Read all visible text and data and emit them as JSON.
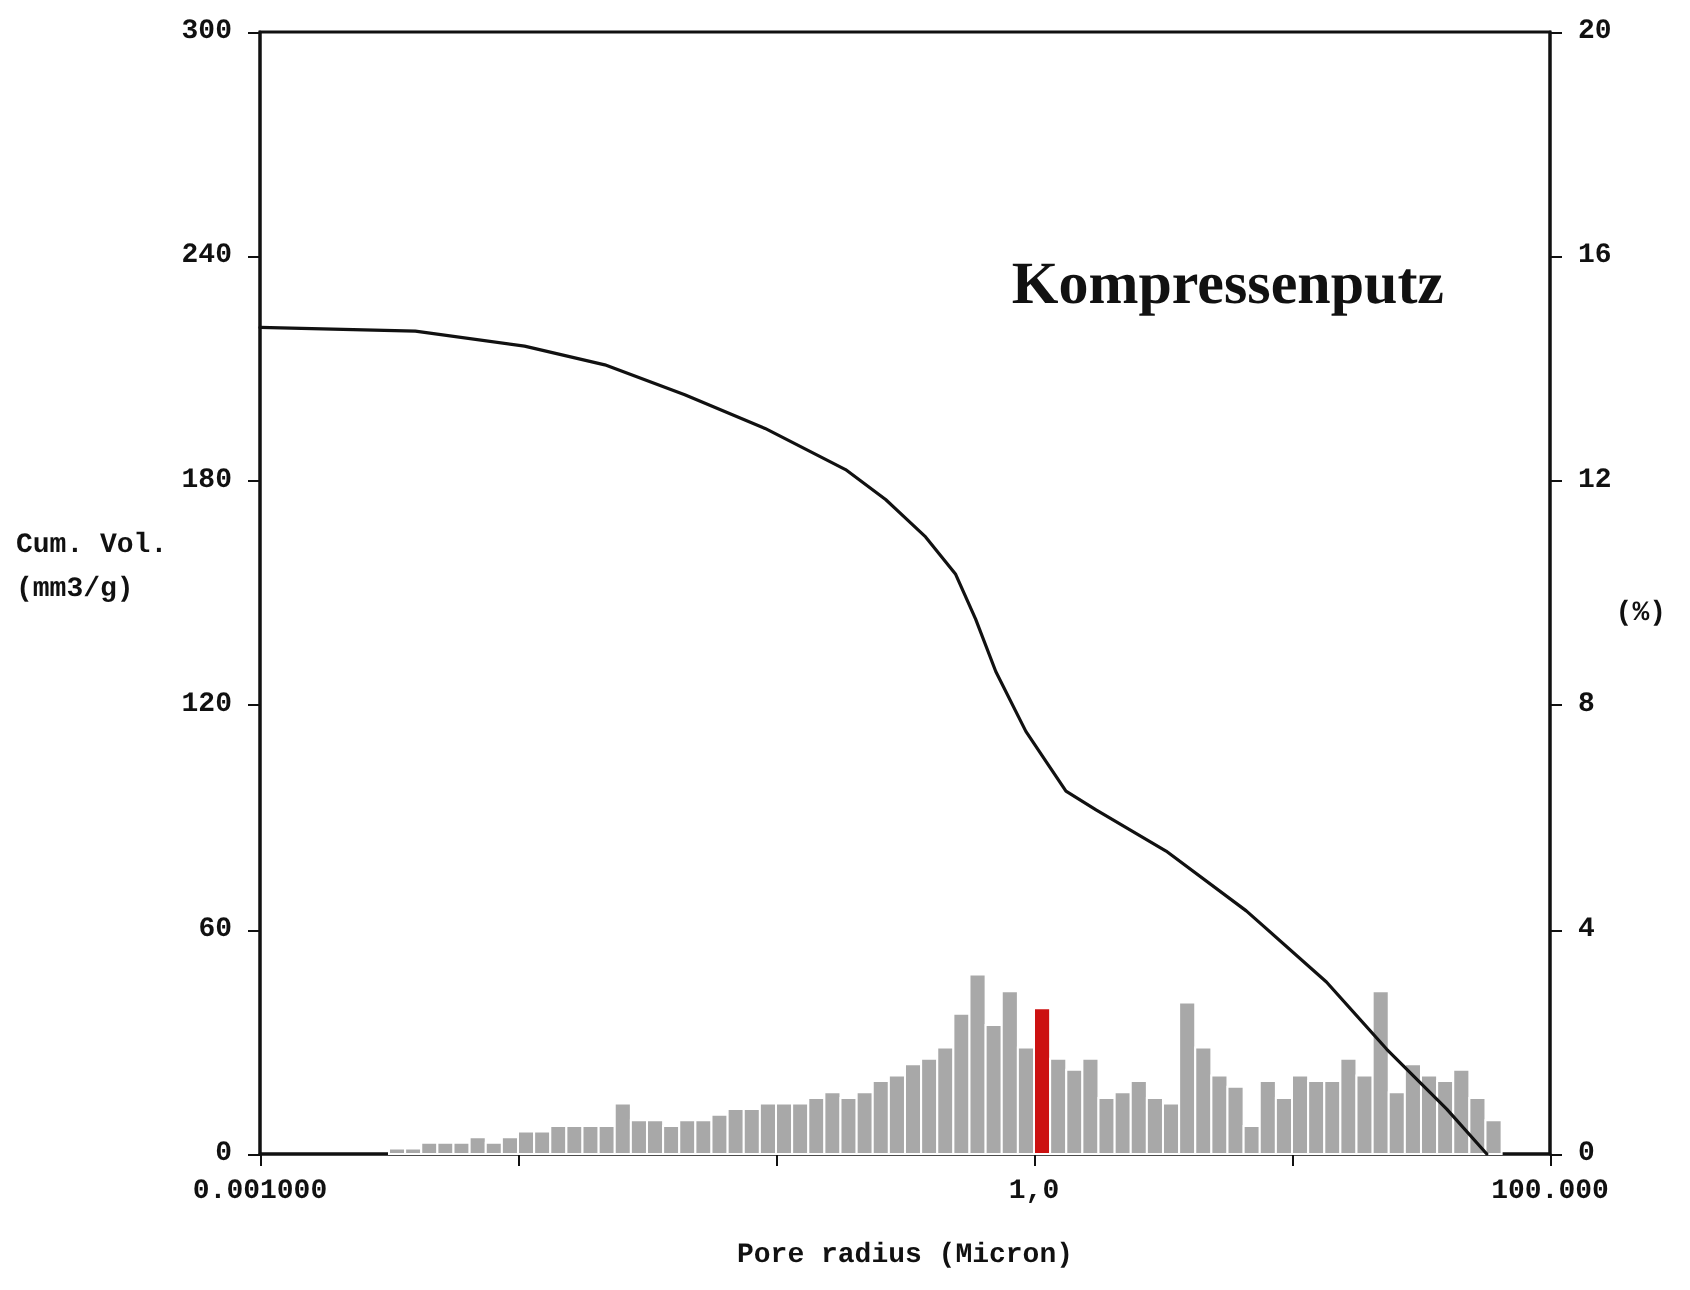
{
  "chart_data": {
    "type": "line",
    "title": "Kompressenputz",
    "xlabel": "Pore radius (Micron)",
    "ylabel": "Cum. Vol.\n(mm3/g)",
    "y2label": "(%)",
    "log": "x",
    "grid": false,
    "legend": false,
    "marker": "none",
    "line_style": "solid",
    "xlim": [
      0.001,
      100
    ],
    "xticks": [
      {
        "value": 0.001,
        "label": "0.001000"
      },
      {
        "value": 0.01,
        "label": null
      },
      {
        "value": 0.1,
        "label": null
      },
      {
        "value": 1,
        "label": "1,0"
      },
      {
        "value": 10,
        "label": null
      },
      {
        "value": 100,
        "label": "100.000"
      }
    ],
    "ylim": [
      0,
      300
    ],
    "yticks": [
      0,
      60,
      120,
      180,
      240,
      300
    ],
    "y2lim": [
      0,
      20
    ],
    "y2ticks": [
      0,
      4,
      8,
      12,
      16,
      20
    ],
    "series": [
      {
        "type": "line",
        "color": "#111111",
        "x": [
          0.001,
          0.004,
          0.0106,
          0.0217,
          0.0443,
          0.0907,
          0.186,
          0.266,
          0.38,
          0.497,
          0.594,
          0.711,
          0.93,
          1.33,
          1.74,
          3.25,
          6.65,
          13.6,
          23.3,
          39.8,
          56.9
        ],
        "values": [
          221,
          220,
          216,
          211,
          203,
          194,
          183,
          175,
          165,
          155,
          143,
          129,
          113,
          97,
          92,
          81,
          65,
          46,
          28,
          12,
          0
        ]
      },
      {
        "type": "histogram",
        "axis": "y2",
        "bins": [
          0.003162,
          0.003652,
          0.004217,
          0.00487,
          0.005623,
          0.006494,
          0.007499,
          0.00866,
          0.01,
          0.01155,
          0.01334,
          0.0154,
          0.01778,
          0.02054,
          0.02371,
          0.02738,
          0.03162,
          0.03652,
          0.04217,
          0.0487,
          0.05623,
          0.06494,
          0.07499,
          0.0866,
          0.1,
          0.1155,
          0.1334,
          0.154,
          0.1778,
          0.2054,
          0.2371,
          0.2738,
          0.3162,
          0.3652,
          0.4217,
          0.487,
          0.5623,
          0.6494,
          0.7499,
          0.866,
          1,
          1.155,
          1.334,
          1.54,
          1.778,
          2.054,
          2.371,
          2.738,
          3.162,
          3.652,
          4.217,
          4.87,
          5.623,
          6.494,
          7.499,
          8.66,
          10,
          11.55,
          13.34,
          15.4,
          17.78,
          20.54,
          23.71,
          27.38,
          31.62,
          36.52,
          42.17,
          48.7,
          56.23,
          64.94
        ],
        "values": [
          0.1,
          0.1,
          0.2,
          0.2,
          0.2,
          0.3,
          0.2,
          0.3,
          0.4,
          0.4,
          0.5,
          0.5,
          0.5,
          0.5,
          0.9,
          0.6,
          0.6,
          0.5,
          0.6,
          0.6,
          0.7,
          0.8,
          0.8,
          0.9,
          0.9,
          0.9,
          1.0,
          1.1,
          1.0,
          1.1,
          1.3,
          1.4,
          1.6,
          1.7,
          1.9,
          2.5,
          3.2,
          2.3,
          2.9,
          1.9,
          2.6,
          1.7,
          1.5,
          1.7,
          1.0,
          1.1,
          1.3,
          1.0,
          0.9,
          2.7,
          1.9,
          1.4,
          1.2,
          0.5,
          1.3,
          1.0,
          1.4,
          1.3,
          1.3,
          1.7,
          1.4,
          2.9,
          1.1,
          1.6,
          1.4,
          1.3,
          1.5,
          1.0,
          0.6
        ],
        "colors": [
          "#a8a8a8",
          "#a8a8a8",
          "#a8a8a8",
          "#a8a8a8",
          "#a8a8a8",
          "#a8a8a8",
          "#a8a8a8",
          "#a8a8a8",
          "#a8a8a8",
          "#a8a8a8",
          "#a8a8a8",
          "#a8a8a8",
          "#a8a8a8",
          "#a8a8a8",
          "#a8a8a8",
          "#a8a8a8",
          "#a8a8a8",
          "#a8a8a8",
          "#a8a8a8",
          "#a8a8a8",
          "#a8a8a8",
          "#a8a8a8",
          "#a8a8a8",
          "#a8a8a8",
          "#a8a8a8",
          "#a8a8a8",
          "#a8a8a8",
          "#a8a8a8",
          "#a8a8a8",
          "#a8a8a8",
          "#a8a8a8",
          "#a8a8a8",
          "#a8a8a8",
          "#a8a8a8",
          "#a8a8a8",
          "#a8a8a8",
          "#a8a8a8",
          "#a8a8a8",
          "#a8a8a8",
          "#a8a8a8",
          "#cc1111",
          "#a8a8a8",
          "#a8a8a8",
          "#a8a8a8",
          "#a8a8a8",
          "#a8a8a8",
          "#a8a8a8",
          "#a8a8a8",
          "#a8a8a8",
          "#a8a8a8",
          "#a8a8a8",
          "#a8a8a8",
          "#a8a8a8",
          "#a8a8a8",
          "#a8a8a8",
          "#a8a8a8",
          "#a8a8a8",
          "#a8a8a8",
          "#a8a8a8",
          "#a8a8a8",
          "#a8a8a8",
          "#a8a8a8",
          "#a8a8a8",
          "#a8a8a8",
          "#a8a8a8",
          "#a8a8a8",
          "#a8a8a8",
          "#a8a8a8",
          "#a8a8a8"
        ]
      }
    ]
  }
}
